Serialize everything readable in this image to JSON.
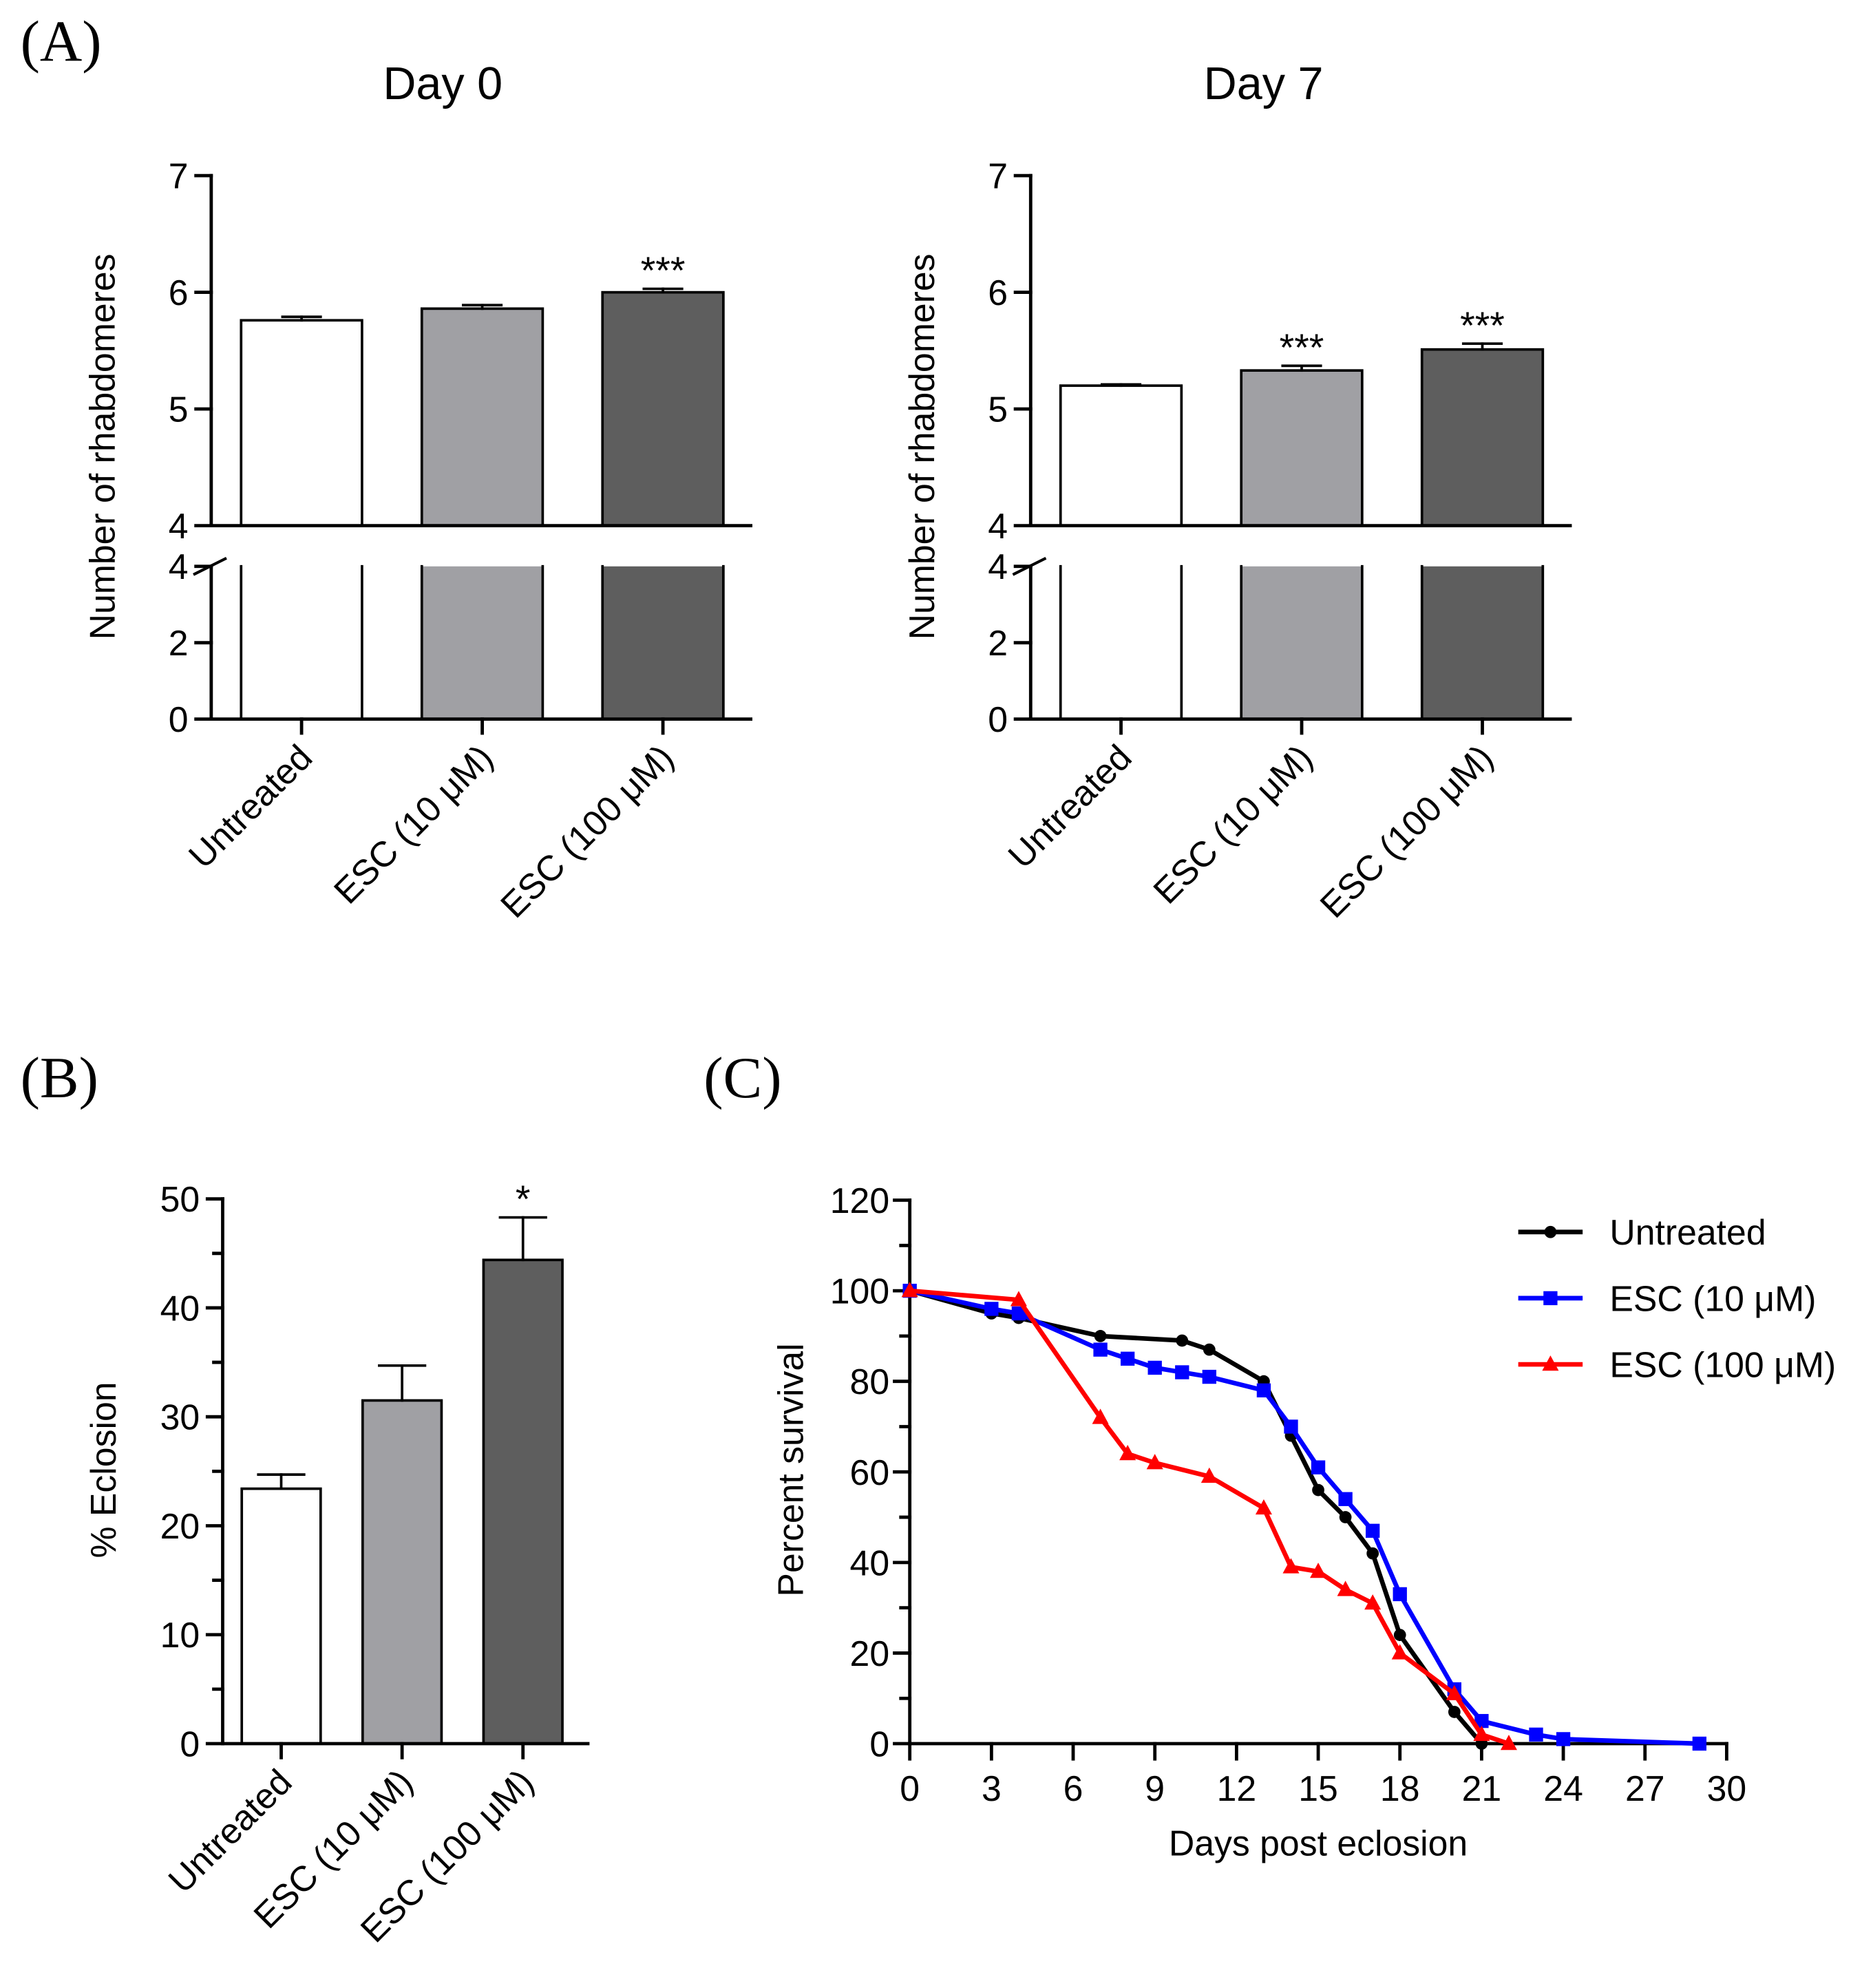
{
  "figure": {
    "panel_labels": {
      "a": "(A)",
      "b": "(B)",
      "c": "(C)"
    }
  },
  "chart_data": [
    {
      "type": "bar",
      "title": "Day 0",
      "ylabel": "Number of rhabdomeres",
      "categories": [
        "Untreated",
        "ESC (10 μM)",
        "ESC (100 μM)"
      ],
      "values": [
        5.76,
        5.86,
        6.0
      ],
      "errors": [
        0.03,
        0.03,
        0.03
      ],
      "significance": [
        null,
        null,
        "***"
      ],
      "bar_colors": [
        "#ffffff",
        "#a0a0a4",
        "#5e5e5e"
      ],
      "y_axis_break": {
        "lower_range": [
          0,
          4
        ],
        "upper_range": [
          4,
          7
        ]
      },
      "y_ticks_upper": [
        4,
        5,
        6,
        7
      ],
      "y_ticks_lower": [
        0,
        2,
        4
      ],
      "grid": false
    },
    {
      "type": "bar",
      "title": "Day 7",
      "ylabel": "Number of rhabdomeres",
      "categories": [
        "Untreated",
        "ESC (10 μM)",
        "ESC (100 μM)"
      ],
      "values": [
        5.2,
        5.33,
        5.51
      ],
      "errors": [
        0.01,
        0.04,
        0.05
      ],
      "significance": [
        null,
        "***",
        "***"
      ],
      "bar_colors": [
        "#ffffff",
        "#a0a0a4",
        "#5e5e5e"
      ],
      "y_axis_break": {
        "lower_range": [
          0,
          4
        ],
        "upper_range": [
          4,
          7
        ]
      },
      "y_ticks_upper": [
        4,
        5,
        6,
        7
      ],
      "y_ticks_lower": [
        0,
        2,
        4
      ],
      "grid": false
    },
    {
      "type": "bar",
      "ylabel": "% Eclosion",
      "categories": [
        "Untreated",
        "ESC (10 μM)",
        "ESC (100 μM)"
      ],
      "values": [
        23.4,
        31.5,
        44.4
      ],
      "errors": [
        1.3,
        3.2,
        3.9
      ],
      "significance": [
        null,
        null,
        "*"
      ],
      "bar_colors": [
        "#ffffff",
        "#a0a0a4",
        "#5e5e5e"
      ],
      "ylim": [
        0,
        50
      ],
      "y_ticks": [
        0,
        10,
        20,
        30,
        40,
        50
      ],
      "grid": false
    },
    {
      "type": "line",
      "xlabel": "Days post eclosion",
      "ylabel": "Percent survival",
      "xlim": [
        0,
        30
      ],
      "ylim": [
        0,
        120
      ],
      "x_ticks": [
        0,
        3,
        6,
        9,
        12,
        15,
        18,
        21,
        24,
        27,
        30
      ],
      "y_ticks": [
        0,
        20,
        40,
        60,
        80,
        100,
        120
      ],
      "legend": "top-right",
      "grid": false,
      "series": [
        {
          "name": "Untreated",
          "color": "#000000",
          "marker": "circle",
          "x": [
            0,
            3,
            4,
            7,
            10,
            11,
            13,
            14,
            15,
            16,
            17,
            18,
            20,
            21
          ],
          "y": [
            100,
            95,
            94,
            90,
            89,
            87,
            80,
            68,
            56,
            50,
            42,
            24,
            7,
            0
          ]
        },
        {
          "name": "ESC (10 μM)",
          "color": "#0000ff",
          "marker": "square",
          "x": [
            0,
            3,
            4,
            7,
            8,
            9,
            10,
            11,
            13,
            14,
            15,
            16,
            17,
            18,
            20,
            21,
            23,
            24,
            29
          ],
          "y": [
            100,
            96,
            95,
            87,
            85,
            83,
            82,
            81,
            78,
            70,
            61,
            54,
            47,
            33,
            12,
            5,
            2,
            1,
            0
          ]
        },
        {
          "name": "ESC (100 μM)",
          "color": "#ff0000",
          "marker": "triangle",
          "x": [
            0,
            4,
            7,
            8,
            9,
            11,
            13,
            14,
            15,
            16,
            17,
            18,
            20,
            21,
            22
          ],
          "y": [
            100,
            98,
            72,
            64,
            62,
            59,
            52,
            39,
            38,
            34,
            31,
            20,
            11,
            2,
            0
          ]
        }
      ]
    }
  ]
}
